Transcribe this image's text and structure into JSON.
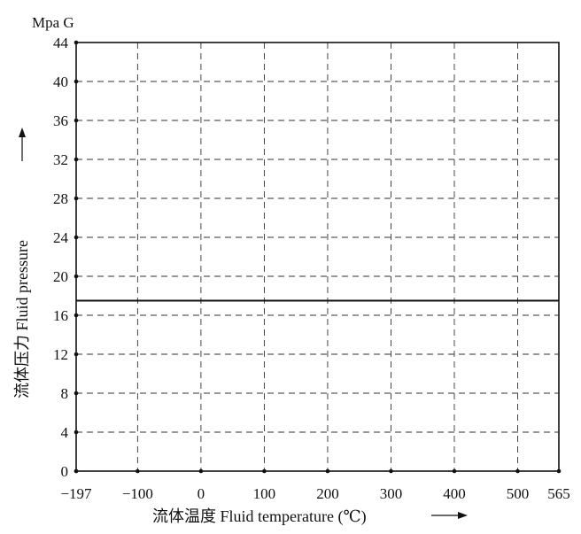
{
  "chart_data": {
    "type": "line",
    "title": "",
    "y_unit": "Mpa G",
    "xlabel": "流体温度 Fluid temperature (℃)",
    "ylabel": "流体压力 Fluid pressure",
    "x_axis": {
      "ticks": [
        -197,
        -100,
        0,
        100,
        200,
        300,
        400,
        500,
        565
      ],
      "tick_labels": [
        "−197",
        "−100",
        "0",
        "100",
        "200",
        "300",
        "400",
        "500",
        "565"
      ],
      "range": [
        -197,
        565
      ]
    },
    "y_axis": {
      "ticks": [
        0,
        4,
        8,
        12,
        16,
        20,
        24,
        28,
        32,
        36,
        40,
        44
      ],
      "tick_labels": [
        "0",
        "4",
        "8",
        "12",
        "16",
        "20",
        "24",
        "28",
        "32",
        "36",
        "40",
        "44"
      ],
      "range": [
        0,
        44
      ]
    },
    "grid": "dashed",
    "series": [
      {
        "x": [
          -197,
          565
        ],
        "y": [
          17.5,
          17.5
        ],
        "color": "#111111"
      }
    ]
  }
}
